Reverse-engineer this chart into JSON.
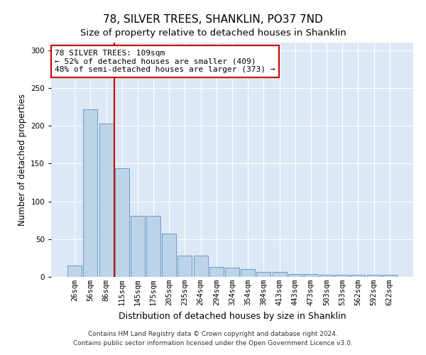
{
  "title": "78, SILVER TREES, SHANKLIN, PO37 7ND",
  "subtitle": "Size of property relative to detached houses in Shanklin",
  "xlabel": "Distribution of detached houses by size in Shanklin",
  "ylabel": "Number of detached properties",
  "categories": [
    "26sqm",
    "56sqm",
    "86sqm",
    "115sqm",
    "145sqm",
    "175sqm",
    "205sqm",
    "235sqm",
    "264sqm",
    "294sqm",
    "324sqm",
    "354sqm",
    "384sqm",
    "413sqm",
    "443sqm",
    "473sqm",
    "503sqm",
    "533sqm",
    "562sqm",
    "592sqm",
    "622sqm"
  ],
  "values": [
    15,
    222,
    203,
    144,
    81,
    81,
    57,
    28,
    28,
    13,
    12,
    10,
    7,
    7,
    4,
    4,
    3,
    3,
    3,
    3,
    3
  ],
  "bar_color": "#bdd4e8",
  "bar_edge_color": "#6699cc",
  "vline_x_index": 3,
  "vline_color": "#cc0000",
  "annotation_line1": "78 SILVER TREES: 109sqm",
  "annotation_line2": "← 52% of detached houses are smaller (409)",
  "annotation_line3": "48% of semi-detached houses are larger (373) →",
  "annotation_box_color": "#ffffff",
  "annotation_box_edge_color": "#cc0000",
  "ylim": [
    0,
    310
  ],
  "yticks": [
    0,
    50,
    100,
    150,
    200,
    250,
    300
  ],
  "background_color": "#dce8f5",
  "footer_line1": "Contains HM Land Registry data © Crown copyright and database right 2024.",
  "footer_line2": "Contains public sector information licensed under the Open Government Licence v3.0.",
  "title_fontsize": 11,
  "subtitle_fontsize": 9.5,
  "xlabel_fontsize": 9,
  "ylabel_fontsize": 8.5,
  "annotation_fontsize": 8,
  "tick_fontsize": 7.5,
  "footer_fontsize": 6.5
}
